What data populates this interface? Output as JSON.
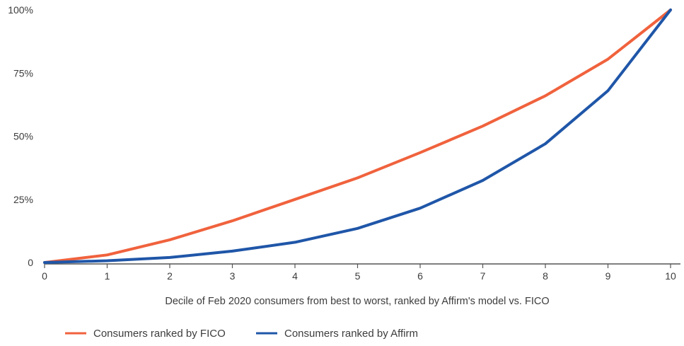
{
  "chart_data": {
    "type": "line",
    "title": "",
    "xlabel": "Decile of Feb 2020 consumers from best to worst, ranked by Affirm's model vs. FICO",
    "ylabel": "",
    "x": [
      0,
      1,
      2,
      3,
      4,
      5,
      6,
      7,
      8,
      9,
      10
    ],
    "x_tick_labels": [
      "0",
      "1",
      "2",
      "3",
      "4",
      "5",
      "6",
      "7",
      "8",
      "9",
      "10"
    ],
    "xlim": [
      0,
      10
    ],
    "y_ticks": [
      0,
      25,
      50,
      75,
      100
    ],
    "y_tick_labels": [
      "0",
      "25%",
      "50%",
      "75%",
      "100%"
    ],
    "ylim": [
      0,
      100
    ],
    "grid": false,
    "legend_position": "bottom-left",
    "series": [
      {
        "name": "Consumers ranked by FICO",
        "color": "#f0623d",
        "values": [
          0,
          3,
          9,
          16.5,
          25,
          33.5,
          43.5,
          54,
          66,
          80.5,
          100
        ]
      },
      {
        "name": "Consumers ranked by Affirm",
        "color": "#1f56a8",
        "values": [
          0,
          0.7,
          2,
          4.5,
          8,
          13.5,
          21.5,
          32.5,
          47,
          68,
          100
        ]
      }
    ],
    "axis_color": "#555555"
  }
}
